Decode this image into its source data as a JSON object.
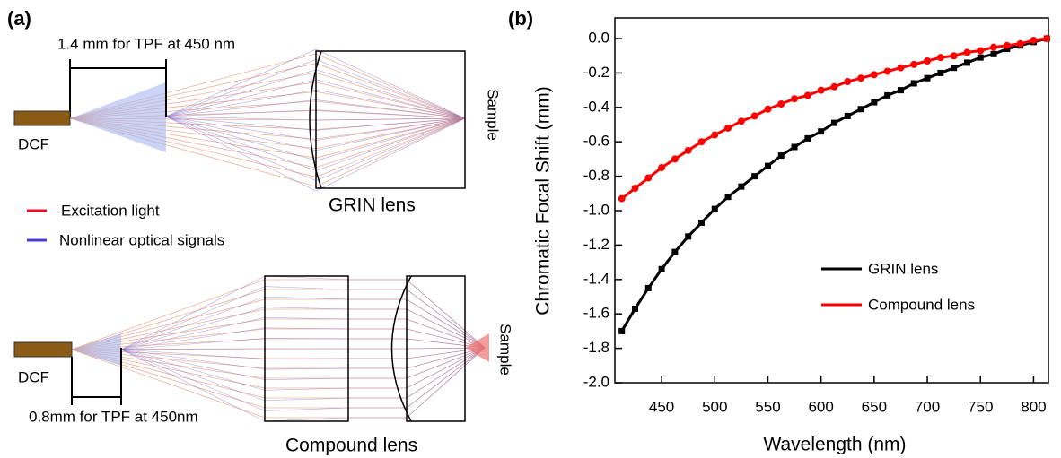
{
  "panel_a": {
    "label": "(a)",
    "top": {
      "dimension": "1.4 mm for TPF at 450 nm",
      "fiber": "DCF",
      "sample": "Sample",
      "lens": "GRIN lens"
    },
    "legend": {
      "excitation": "Excitation light",
      "signals": "Nonlinear optical signals"
    },
    "bottom": {
      "dimension": "0.8mm for TPF at 450nm",
      "fiber": "DCF",
      "sample": "Sample",
      "lens": "Compound lens"
    }
  },
  "chart_data": {
    "type": "line",
    "panel_label": "(b)",
    "xlabel": "Wavelength (nm)",
    "ylabel": "Chromatic Focal Shift (mm)",
    "x": [
      412.5,
      425,
      437.5,
      450,
      462.5,
      475,
      487.5,
      500,
      512.5,
      525,
      537.5,
      550,
      562.5,
      575,
      587.5,
      600,
      612.5,
      625,
      637.5,
      650,
      662.5,
      675,
      687.5,
      700,
      712.5,
      725,
      737.5,
      750,
      762.5,
      775,
      787.5,
      800,
      812.5
    ],
    "series": [
      {
        "name": "GRIN lens",
        "color": "#000000",
        "marker": "square",
        "values": [
          -1.7,
          -1.57,
          -1.45,
          -1.34,
          -1.24,
          -1.15,
          -1.07,
          -0.99,
          -0.92,
          -0.86,
          -0.8,
          -0.74,
          -0.68,
          -0.63,
          -0.58,
          -0.54,
          -0.49,
          -0.45,
          -0.41,
          -0.37,
          -0.33,
          -0.3,
          -0.26,
          -0.23,
          -0.2,
          -0.17,
          -0.14,
          -0.11,
          -0.09,
          -0.06,
          -0.04,
          -0.02,
          0.0
        ]
      },
      {
        "name": "Compound lens",
        "color": "#ff0000",
        "marker": "circle",
        "values": [
          -0.93,
          -0.87,
          -0.81,
          -0.75,
          -0.7,
          -0.65,
          -0.6,
          -0.56,
          -0.52,
          -0.48,
          -0.45,
          -0.41,
          -0.38,
          -0.35,
          -0.33,
          -0.3,
          -0.28,
          -0.25,
          -0.23,
          -0.21,
          -0.19,
          -0.17,
          -0.15,
          -0.13,
          -0.11,
          -0.1,
          -0.08,
          -0.07,
          -0.05,
          -0.04,
          -0.03,
          -0.01,
          0.0
        ]
      }
    ],
    "xlim": [
      406,
      814
    ],
    "ylim": [
      -2.0,
      0.12
    ],
    "xticks": [
      450,
      500,
      550,
      600,
      650,
      700,
      750,
      800
    ],
    "yticks": [
      {
        "value": 0,
        "label": "0.0"
      },
      -0.2,
      -0.4,
      -0.6,
      -0.8,
      {
        "value": -1,
        "label": "-1.0"
      },
      -1.2,
      -1.4,
      -1.6,
      -1.8,
      {
        "value": -2,
        "label": "-2.0"
      }
    ],
    "legend": "center right"
  }
}
